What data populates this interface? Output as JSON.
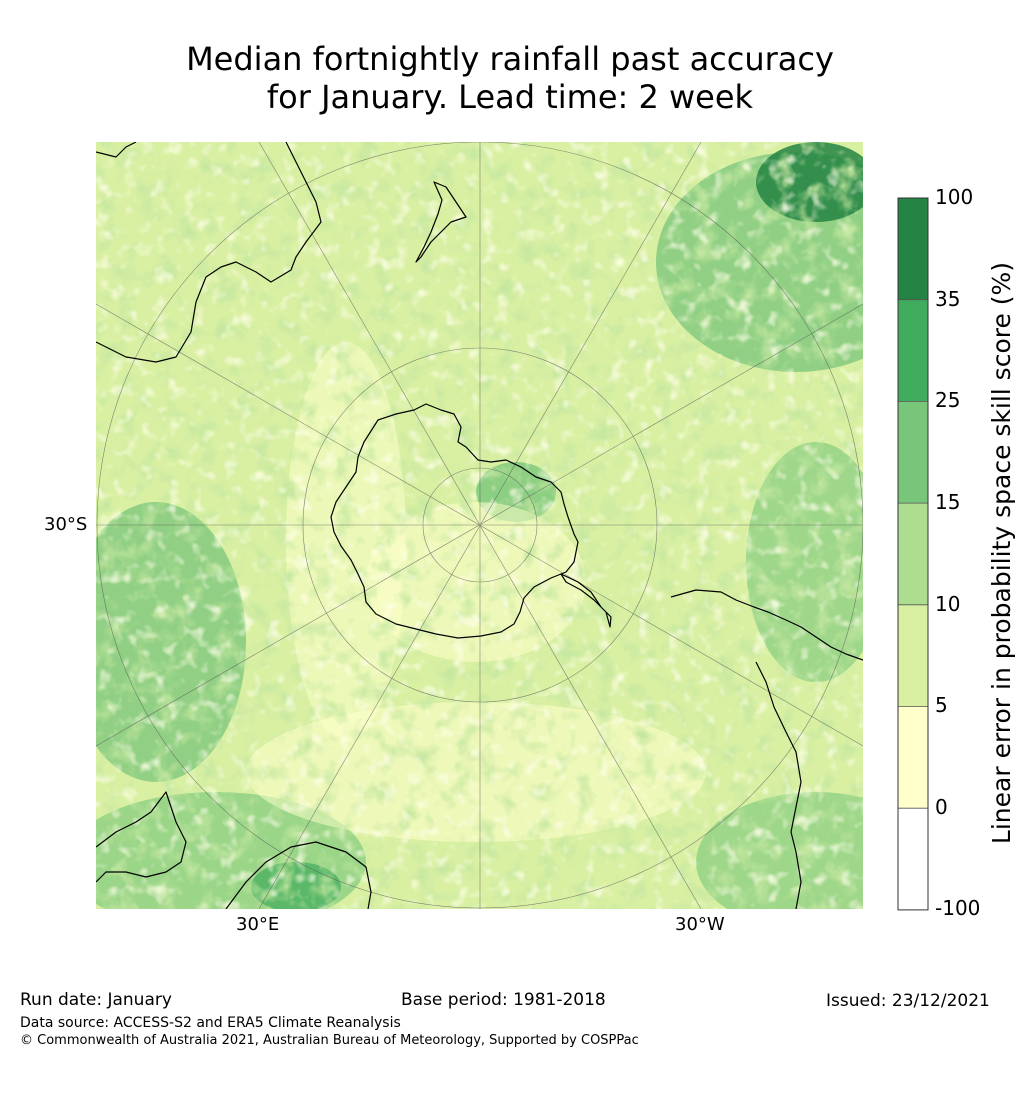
{
  "title": {
    "line1": "Median fortnightly rainfall past accuracy",
    "line2": "for January. Lead time: 2 week"
  },
  "map": {
    "projection": "south-polar-stereographic",
    "lon_labels": [
      "30°E",
      "30°W"
    ],
    "lat_labels": [
      "30°S"
    ]
  },
  "colorbar": {
    "label": "Linear error in probability space skill score (%)",
    "ticks": [
      "100",
      "35",
      "25",
      "15",
      "10",
      "5",
      "0",
      "-100"
    ],
    "bins": [
      {
        "range": "35 to 100",
        "color": "#238443"
      },
      {
        "range": "25 to 35",
        "color": "#41ab5d"
      },
      {
        "range": "15 to 25",
        "color": "#78c679"
      },
      {
        "range": "10 to 15",
        "color": "#addd8e"
      },
      {
        "range": "5 to 10",
        "color": "#d9f0a3"
      },
      {
        "range": "0 to 5",
        "color": "#ffffcc"
      },
      {
        "range": "-100 to 0",
        "color": "#ffffff"
      }
    ]
  },
  "footer": {
    "run_date": "Run date: January",
    "base_period": "Base period: 1981-2018",
    "issued": "Issued: 23/12/2021",
    "data_source": "Data source: ACCESS-S2 and ERA5 Climate Reanalysis",
    "copyright": "© Commonwealth of Australia 2021, Australian Bureau of Meteorology, Supported by COSPPac"
  }
}
